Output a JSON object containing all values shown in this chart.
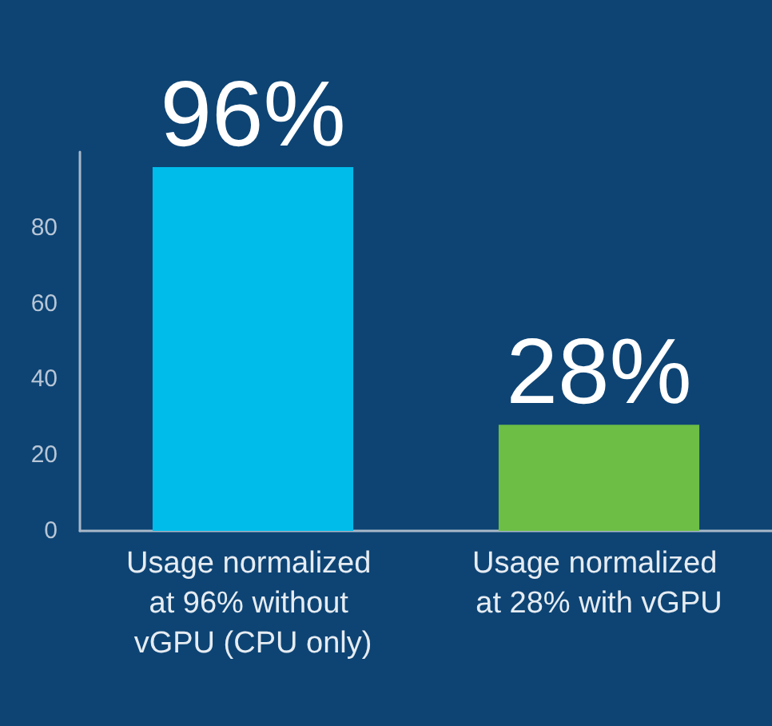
{
  "chart_data": {
    "type": "bar",
    "categories": [
      "Usage normalized at 96% without vGPU (CPU only)",
      "Usage normalized at 28% with vGPU"
    ],
    "values": [
      96,
      28
    ],
    "colors": [
      "#00bceb",
      "#6cbe45"
    ],
    "value_labels": [
      "96%",
      "28%"
    ],
    "ylim": [
      0,
      100
    ],
    "yticks": [
      0,
      20,
      40,
      60,
      80
    ],
    "grid": false
  }
}
